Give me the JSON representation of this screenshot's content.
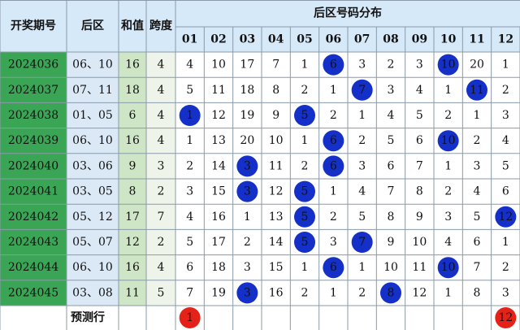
{
  "header": {
    "issue": "开奖期号",
    "back": "后区",
    "sum": "和值",
    "span": "跨度",
    "dist": "后区号码分布",
    "columns": [
      "01",
      "02",
      "03",
      "04",
      "05",
      "06",
      "07",
      "08",
      "09",
      "10",
      "11",
      "12"
    ]
  },
  "rows": [
    {
      "issue": "2024036",
      "back": "06、10",
      "sum": 16,
      "span": 4,
      "dist": [
        4,
        10,
        17,
        7,
        1,
        6,
        3,
        2,
        3,
        10,
        20,
        1
      ]
    },
    {
      "issue": "2024037",
      "back": "07、11",
      "sum": 18,
      "span": 4,
      "dist": [
        5,
        11,
        18,
        8,
        2,
        1,
        7,
        3,
        4,
        1,
        11,
        2
      ]
    },
    {
      "issue": "2024038",
      "back": "01、05",
      "sum": 6,
      "span": 4,
      "dist": [
        1,
        12,
        19,
        9,
        5,
        2,
        1,
        4,
        5,
        2,
        1,
        3
      ]
    },
    {
      "issue": "2024039",
      "back": "06、10",
      "sum": 16,
      "span": 4,
      "dist": [
        1,
        13,
        20,
        10,
        1,
        6,
        2,
        5,
        6,
        10,
        2,
        4
      ]
    },
    {
      "issue": "2024040",
      "back": "03、06",
      "sum": 9,
      "span": 3,
      "dist": [
        2,
        14,
        3,
        11,
        2,
        6,
        3,
        6,
        7,
        1,
        3,
        5
      ]
    },
    {
      "issue": "2024041",
      "back": "03、05",
      "sum": 8,
      "span": 2,
      "dist": [
        3,
        15,
        3,
        12,
        5,
        1,
        4,
        7,
        8,
        2,
        4,
        6
      ]
    },
    {
      "issue": "2024042",
      "back": "05、12",
      "sum": 17,
      "span": 7,
      "dist": [
        4,
        16,
        1,
        13,
        5,
        2,
        5,
        8,
        9,
        3,
        5,
        12
      ]
    },
    {
      "issue": "2024043",
      "back": "05、07",
      "sum": 12,
      "span": 2,
      "dist": [
        5,
        17,
        2,
        14,
        5,
        3,
        7,
        9,
        10,
        4,
        6,
        1
      ]
    },
    {
      "issue": "2024044",
      "back": "06、10",
      "sum": 16,
      "span": 4,
      "dist": [
        6,
        18,
        3,
        15,
        1,
        6,
        1,
        10,
        11,
        10,
        7,
        2
      ]
    },
    {
      "issue": "2024045",
      "back": "03、08",
      "sum": 11,
      "span": 5,
      "dist": [
        7,
        19,
        3,
        16,
        2,
        1,
        2,
        8,
        12,
        1,
        8,
        3
      ]
    }
  ],
  "prediction": {
    "label": "预测行",
    "numbers": [
      1,
      12
    ]
  }
}
